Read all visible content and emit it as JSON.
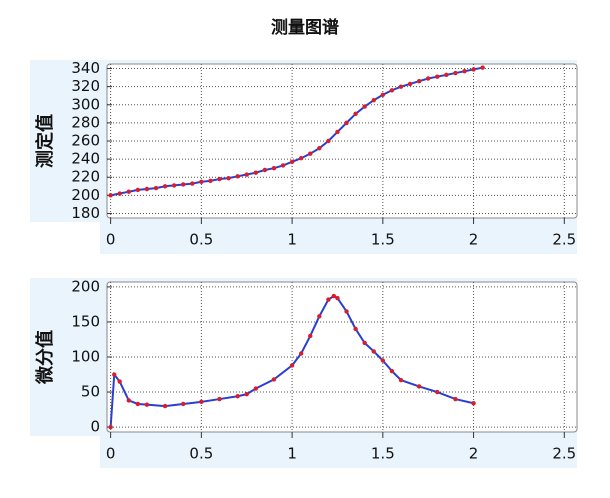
{
  "title": "测量图谱",
  "chart_data": [
    {
      "type": "line",
      "ylabel": "测定值",
      "x": [
        0,
        0.05,
        0.1,
        0.15,
        0.2,
        0.25,
        0.3,
        0.35,
        0.4,
        0.45,
        0.5,
        0.55,
        0.6,
        0.65,
        0.7,
        0.75,
        0.8,
        0.85,
        0.9,
        0.95,
        1.0,
        1.05,
        1.1,
        1.15,
        1.2,
        1.25,
        1.3,
        1.35,
        1.4,
        1.45,
        1.5,
        1.55,
        1.6,
        1.65,
        1.7,
        1.75,
        1.8,
        1.85,
        1.9,
        1.95,
        2.0,
        2.05
      ],
      "series": [
        {
          "color": "#2a3fd0",
          "marker_color": "#d81e2c",
          "values": [
            200,
            202,
            204,
            206,
            207,
            208,
            210,
            211,
            212,
            213,
            215,
            216,
            218,
            219,
            221,
            223,
            225,
            228,
            230,
            233,
            237,
            241,
            246,
            252,
            260,
            270,
            280,
            290,
            298,
            305,
            311,
            316,
            320,
            323,
            326,
            329,
            331,
            333,
            335,
            337,
            339,
            341
          ]
        }
      ],
      "xlim": [
        -0.02,
        2.57
      ],
      "xticks": [
        0,
        0.5,
        1,
        1.5,
        2,
        2.5
      ],
      "ylim": [
        175,
        345
      ],
      "yticks": [
        180,
        200,
        220,
        240,
        260,
        280,
        300,
        320,
        340
      ],
      "grid": true
    },
    {
      "type": "line",
      "ylabel": "微分值",
      "x": [
        0,
        0.02,
        0.05,
        0.1,
        0.15,
        0.2,
        0.3,
        0.4,
        0.5,
        0.6,
        0.7,
        0.75,
        0.8,
        0.9,
        1.0,
        1.05,
        1.1,
        1.15,
        1.2,
        1.23,
        1.25,
        1.3,
        1.35,
        1.4,
        1.45,
        1.5,
        1.55,
        1.6,
        1.7,
        1.8,
        1.9,
        2.0
      ],
      "series": [
        {
          "color": "#2a3fd0",
          "marker_color": "#d81e2c",
          "values": [
            0,
            75,
            65,
            38,
            33,
            32,
            30,
            33,
            36,
            40,
            44,
            47,
            55,
            68,
            88,
            105,
            130,
            158,
            182,
            187,
            184,
            165,
            140,
            120,
            108,
            95,
            80,
            67,
            58,
            50,
            40,
            34
          ]
        }
      ],
      "xlim": [
        -0.02,
        2.57
      ],
      "xticks": [
        0,
        0.5,
        1,
        1.5,
        2,
        2.5
      ],
      "ylim": [
        -7,
        207
      ],
      "yticks": [
        0,
        50,
        100,
        150,
        200
      ],
      "grid": true
    }
  ]
}
